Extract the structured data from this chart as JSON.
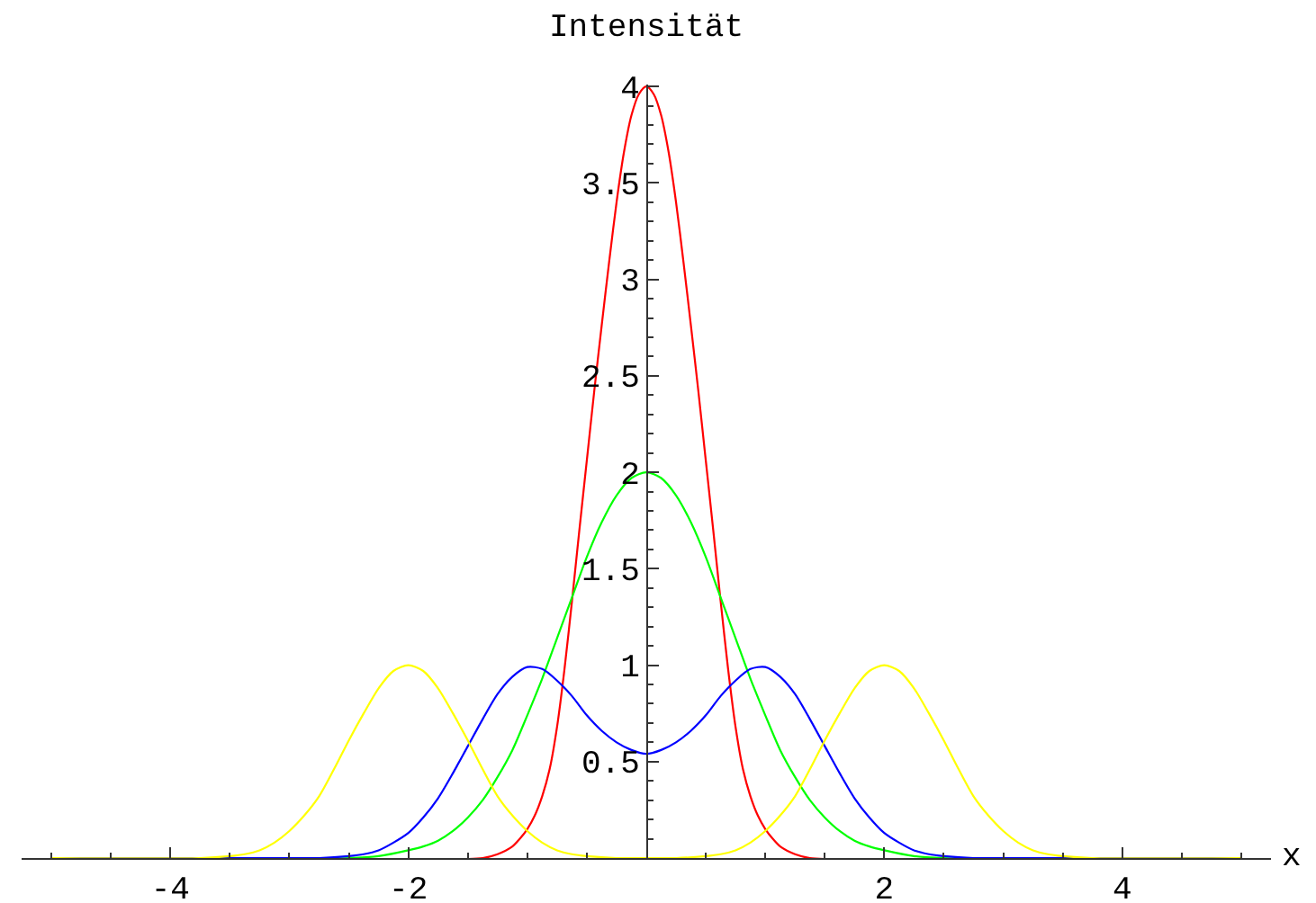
{
  "chart_data": {
    "type": "line",
    "xlabel": "x",
    "ylabel": "Intensität",
    "xlim": [
      -5.25,
      5.25
    ],
    "ylim": [
      0,
      4.01
    ],
    "xticks": [
      {
        "value": -5,
        "label": null
      },
      {
        "value": -4.5,
        "label": null
      },
      -4,
      {
        "value": -3.5,
        "label": null
      },
      {
        "value": -3,
        "label": null
      },
      {
        "value": -2.5,
        "label": null
      },
      -2,
      {
        "value": -1.5,
        "label": null
      },
      {
        "value": -1,
        "label": null
      },
      {
        "value": -0.5,
        "label": null
      },
      {
        "value": 0.5,
        "label": null
      },
      {
        "value": 1,
        "label": null
      },
      {
        "value": 1.5,
        "label": null
      },
      2,
      {
        "value": 2.5,
        "label": null
      },
      {
        "value": 3,
        "label": null
      },
      {
        "value": 3.5,
        "label": null
      },
      4,
      {
        "value": 4.5,
        "label": null
      },
      {
        "value": 5,
        "label": null
      }
    ],
    "yticks": [
      {
        "value": 0.1,
        "label": null
      },
      {
        "value": 0.2,
        "label": null
      },
      {
        "value": 0.3,
        "label": null
      },
      {
        "value": 0.4,
        "label": null
      },
      0.5,
      {
        "value": 0.6,
        "label": null
      },
      {
        "value": 0.7,
        "label": null
      },
      {
        "value": 0.8,
        "label": null
      },
      {
        "value": 0.9,
        "label": null
      },
      1,
      {
        "value": 1.1,
        "label": null
      },
      {
        "value": 1.2,
        "label": null
      },
      {
        "value": 1.3,
        "label": null
      },
      {
        "value": 1.4,
        "label": null
      },
      1.5,
      {
        "value": 1.6,
        "label": null
      },
      {
        "value": 1.7,
        "label": null
      },
      {
        "value": 1.8,
        "label": null
      },
      {
        "value": 1.9,
        "label": null
      },
      2,
      {
        "value": 2.1,
        "label": null
      },
      {
        "value": 2.2,
        "label": null
      },
      {
        "value": 2.3,
        "label": null
      },
      {
        "value": 2.4,
        "label": null
      },
      2.5,
      {
        "value": 2.6,
        "label": null
      },
      {
        "value": 2.7,
        "label": null
      },
      {
        "value": 2.8,
        "label": null
      },
      {
        "value": 2.9,
        "label": null
      },
      3,
      {
        "value": 3.1,
        "label": null
      },
      {
        "value": 3.2,
        "label": null
      },
      {
        "value": 3.3,
        "label": null
      },
      {
        "value": 3.4,
        "label": null
      },
      3.5,
      {
        "value": 3.6,
        "label": null
      },
      {
        "value": 3.7,
        "label": null
      },
      {
        "value": 3.8,
        "label": null
      },
      {
        "value": 3.9,
        "label": null
      },
      4
    ],
    "series": [
      {
        "color": "#ff0000",
        "x": [
          -5,
          -1.375,
          -1.25,
          -1.125,
          -1.0625,
          -1,
          -0.9375,
          -0.875,
          -0.8125,
          -0.75,
          -0.6875,
          -0.625,
          -0.5625,
          -0.5,
          -0.4375,
          -0.375,
          -0.3125,
          -0.25,
          -0.1875,
          -0.125,
          -0.0625,
          0,
          0.0625,
          0.125,
          0.1875,
          0.25,
          0.3125,
          0.375,
          0.4375,
          0.5,
          0.5625,
          0.625,
          0.6875,
          0.75,
          0.8125,
          0.875,
          0.9375,
          1,
          1.0625,
          1.125,
          1.25,
          1.375,
          5
        ],
        "values": [
          0,
          0,
          0.02,
          0.06,
          0.1,
          0.15,
          0.22,
          0.32,
          0.46,
          0.68,
          0.98,
          1.33,
          1.7,
          2.06,
          2.42,
          2.76,
          3.09,
          3.4,
          3.66,
          3.85,
          3.96,
          4,
          3.96,
          3.85,
          3.66,
          3.4,
          3.09,
          2.76,
          2.42,
          2.06,
          1.7,
          1.33,
          0.98,
          0.68,
          0.46,
          0.32,
          0.22,
          0.15,
          0.1,
          0.06,
          0.02,
          0,
          0
        ]
      },
      {
        "color": "#00ff00",
        "x": [
          -5,
          -2.5,
          -2.25,
          -2,
          -1.875,
          -1.75,
          -1.625,
          -1.5,
          -1.375,
          -1.25,
          -1.125,
          -1,
          -0.875,
          -0.75,
          -0.625,
          -0.5,
          -0.375,
          -0.25,
          -0.125,
          0,
          0.125,
          0.25,
          0.375,
          0.5,
          0.625,
          0.75,
          0.875,
          1,
          1.125,
          1.25,
          1.375,
          1.5,
          1.625,
          1.75,
          1.875,
          2,
          2.25,
          2.5,
          5
        ],
        "values": [
          0,
          0,
          0.01,
          0.04,
          0.06,
          0.09,
          0.14,
          0.21,
          0.3,
          0.42,
          0.56,
          0.74,
          0.93,
          1.14,
          1.35,
          1.56,
          1.74,
          1.88,
          1.97,
          2,
          1.97,
          1.88,
          1.74,
          1.56,
          1.35,
          1.14,
          0.93,
          0.74,
          0.56,
          0.42,
          0.3,
          0.21,
          0.14,
          0.09,
          0.06,
          0.04,
          0.01,
          0,
          0
        ]
      },
      {
        "color": "#0000ff",
        "x": [
          -5,
          -3,
          -2.75,
          -2.5,
          -2.375,
          -2.25,
          -2.125,
          -2,
          -1.875,
          -1.75,
          -1.625,
          -1.5,
          -1.375,
          -1.25,
          -1.125,
          -1,
          -0.875,
          -0.75,
          -0.625,
          -0.5,
          -0.375,
          -0.25,
          -0.125,
          0,
          0.125,
          0.25,
          0.375,
          0.5,
          0.625,
          0.75,
          0.875,
          1,
          1.125,
          1.25,
          1.375,
          1.5,
          1.625,
          1.75,
          1.875,
          2,
          2.125,
          2.25,
          2.375,
          2.5,
          2.75,
          3,
          5
        ],
        "values": [
          0,
          0,
          0,
          0.01,
          0.02,
          0.04,
          0.08,
          0.13,
          0.21,
          0.31,
          0.44,
          0.58,
          0.72,
          0.85,
          0.94,
          0.99,
          0.98,
          0.92,
          0.84,
          0.74,
          0.66,
          0.6,
          0.56,
          0.54,
          0.56,
          0.6,
          0.66,
          0.74,
          0.84,
          0.92,
          0.98,
          0.99,
          0.94,
          0.85,
          0.72,
          0.58,
          0.44,
          0.31,
          0.21,
          0.13,
          0.08,
          0.04,
          0.02,
          0.01,
          0,
          0,
          0
        ]
      },
      {
        "color": "#ffff00",
        "x": [
          -5,
          -3.75,
          -3.5,
          -3.375,
          -3.25,
          -3.125,
          -3,
          -2.875,
          -2.75,
          -2.625,
          -2.5,
          -2.375,
          -2.25,
          -2.125,
          -2,
          -1.875,
          -1.75,
          -1.625,
          -1.5,
          -1.375,
          -1.25,
          -1.125,
          -1,
          -0.875,
          -0.75,
          -0.625,
          -0.5,
          -0.25,
          0,
          0.25,
          0.5,
          0.625,
          0.75,
          0.875,
          1,
          1.125,
          1.25,
          1.375,
          1.5,
          1.625,
          1.75,
          1.875,
          2,
          2.125,
          2.25,
          2.375,
          2.5,
          2.625,
          2.75,
          2.875,
          3,
          3.125,
          3.25,
          3.375,
          3.5,
          3.75,
          5
        ],
        "values": [
          0,
          0,
          0.01,
          0.02,
          0.04,
          0.08,
          0.14,
          0.22,
          0.32,
          0.46,
          0.61,
          0.75,
          0.88,
          0.97,
          1,
          0.97,
          0.88,
          0.75,
          0.61,
          0.46,
          0.32,
          0.22,
          0.14,
          0.08,
          0.04,
          0.02,
          0.01,
          0,
          0,
          0,
          0.01,
          0.02,
          0.04,
          0.08,
          0.14,
          0.22,
          0.32,
          0.46,
          0.61,
          0.75,
          0.88,
          0.97,
          1,
          0.97,
          0.88,
          0.75,
          0.61,
          0.46,
          0.32,
          0.22,
          0.14,
          0.08,
          0.04,
          0.02,
          0.01,
          0,
          0
        ]
      }
    ]
  }
}
